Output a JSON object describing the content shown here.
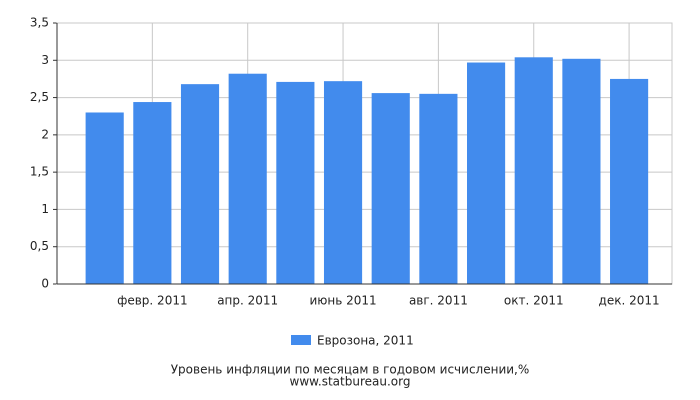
{
  "chart_data": {
    "type": "bar",
    "title": "Уровень инфляции по месяцам в годовом исчислении,%",
    "subtitle": "www.statbureau.org",
    "categories": [
      null,
      "февр. 2011",
      null,
      "апр. 2011",
      null,
      "июнь 2011",
      null,
      "авг. 2011",
      null,
      "окт. 2011",
      null,
      "дек. 2011"
    ],
    "series": [
      {
        "name": "Еврозона, 2011",
        "color": "#428bed",
        "values": [
          2.3,
          2.44,
          2.68,
          2.82,
          2.71,
          2.72,
          2.56,
          2.55,
          2.97,
          3.04,
          3.02,
          2.75
        ]
      }
    ],
    "ylim": [
      0,
      3.5
    ],
    "yticks": [
      0,
      {
        "value": 0.5,
        "label": "0,5"
      },
      1,
      {
        "value": 1.5,
        "label": "1,5"
      },
      2,
      {
        "value": 2.5,
        "label": "2,5"
      },
      3,
      {
        "value": 3.5,
        "label": "3,5"
      }
    ],
    "grid": true
  }
}
